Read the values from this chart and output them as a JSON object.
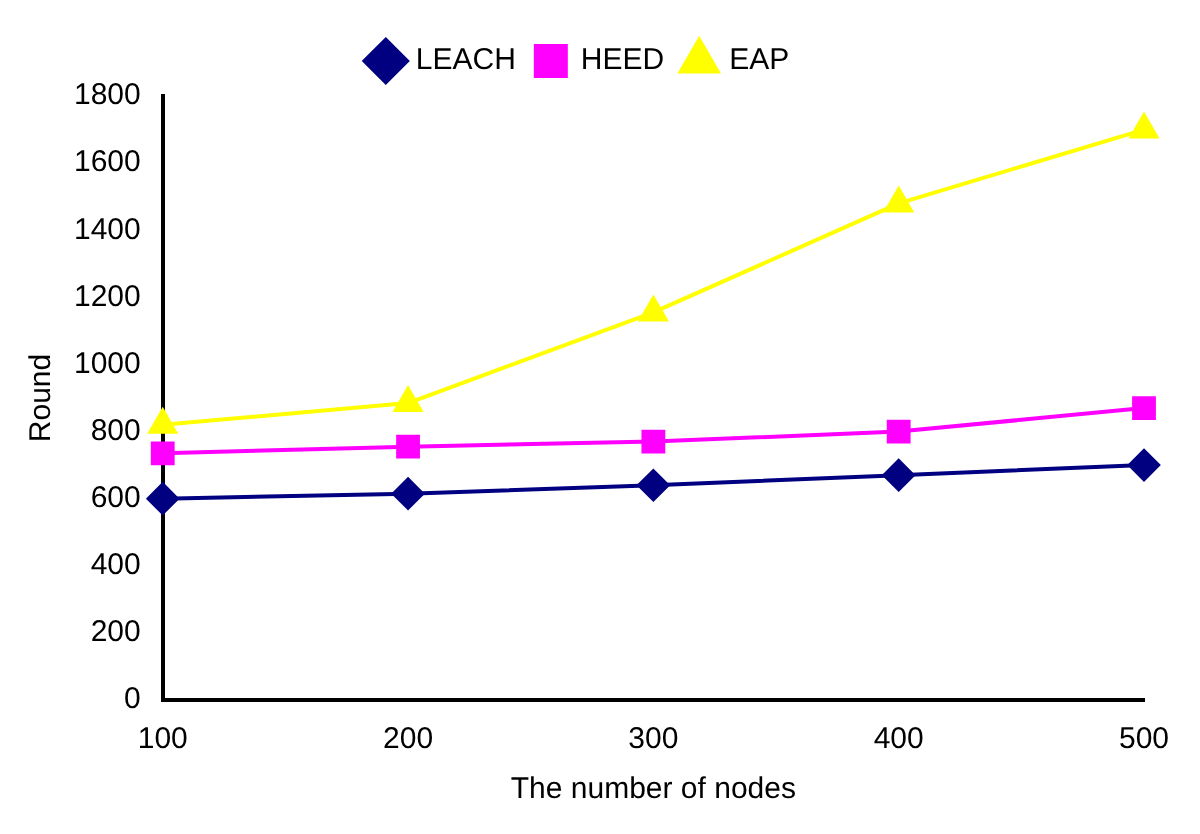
{
  "chart_data": {
    "type": "line",
    "xlabel": "The number of nodes",
    "ylabel": "Round",
    "categories": [
      "100",
      "200",
      "300",
      "400",
      "500"
    ],
    "series": [
      {
        "name": "LEACH",
        "color": "#000080",
        "marker": "diamond",
        "values": [
          600,
          615,
          640,
          670,
          700
        ]
      },
      {
        "name": "HEED",
        "color": "#ff00ff",
        "marker": "square",
        "values": [
          735,
          755,
          770,
          800,
          870
        ]
      },
      {
        "name": "EAP",
        "color": "#ffff00",
        "marker": "triangle",
        "values": [
          820,
          885,
          1155,
          1480,
          1700
        ]
      }
    ],
    "ylim": [
      0,
      1800
    ],
    "yticks": [
      0,
      200,
      400,
      600,
      800,
      1000,
      1200,
      1400,
      1600,
      1800
    ],
    "grid": false,
    "legend": "top"
  }
}
